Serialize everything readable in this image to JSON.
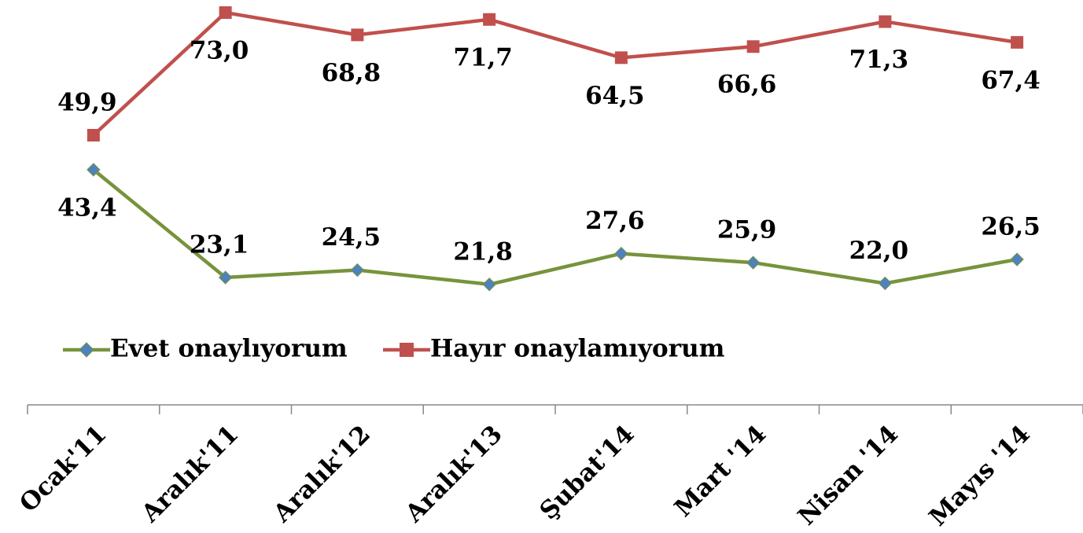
{
  "chart_data": {
    "type": "line",
    "categories": [
      "Ocak'11",
      "Aralık'11",
      "Aralık'12",
      "Aralık'13",
      "Şubat'14",
      "Mart '14",
      "Nisan '14",
      "Mayıs '14"
    ],
    "series": [
      {
        "name": "Evet onaylıyorum",
        "color": "#77933c",
        "marker": "diamond",
        "marker_color": "#4f81bd",
        "values": [
          43.4,
          23.1,
          24.5,
          21.8,
          27.6,
          25.9,
          22.0,
          26.5
        ],
        "value_labels": [
          "43,4",
          "23,1",
          "24,5",
          "21,8",
          "27,6",
          "25,9",
          "22,0",
          "26,5"
        ]
      },
      {
        "name": "Hayır onaylamıyorum",
        "color": "#c0504d",
        "marker": "square",
        "marker_color": "#c0504d",
        "values": [
          49.9,
          73.0,
          68.8,
          71.7,
          64.5,
          66.6,
          71.3,
          67.4
        ],
        "value_labels": [
          "49,9",
          "73,0",
          "68,8",
          "71,7",
          "64,5",
          "66,6",
          "71,3",
          "67,4"
        ]
      }
    ],
    "legend": "bottom"
  }
}
